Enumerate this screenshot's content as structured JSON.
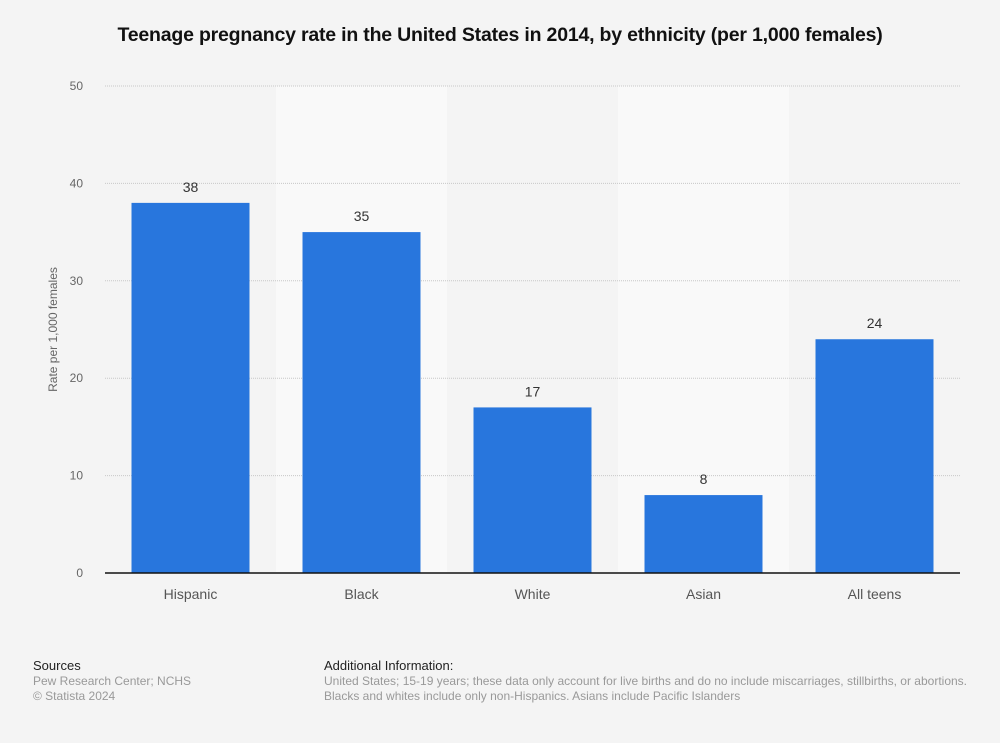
{
  "chart_data": {
    "type": "bar",
    "title": "Teenage pregnancy rate in the United States in 2014, by ethnicity (per 1,000 females)",
    "categories": [
      "Hispanic",
      "Black",
      "White",
      "Asian",
      "All teens"
    ],
    "values": [
      38,
      35,
      17,
      8,
      24
    ],
    "data_labels": [
      "38",
      "35",
      "17",
      "8",
      "24"
    ],
    "xlabel": "",
    "ylabel": "Rate per 1,000 females",
    "ylim": [
      0,
      50
    ],
    "yticks": [
      0,
      10,
      20,
      30,
      40,
      50
    ],
    "grid": true,
    "legend": "none",
    "bar_color": "#2876dd"
  },
  "footer": {
    "sources_heading": "Sources",
    "sources_line1": "Pew Research Center; NCHS",
    "sources_line2": "© Statista 2024",
    "info_heading": "Additional Information:",
    "info_line1": "United States; 15-19 years; these data only account for live births and do no include miscarriages, stillbirths, or abortions.",
    "info_line2": "Blacks and whites include only non-Hispanics. Asians include Pacific Islanders"
  }
}
